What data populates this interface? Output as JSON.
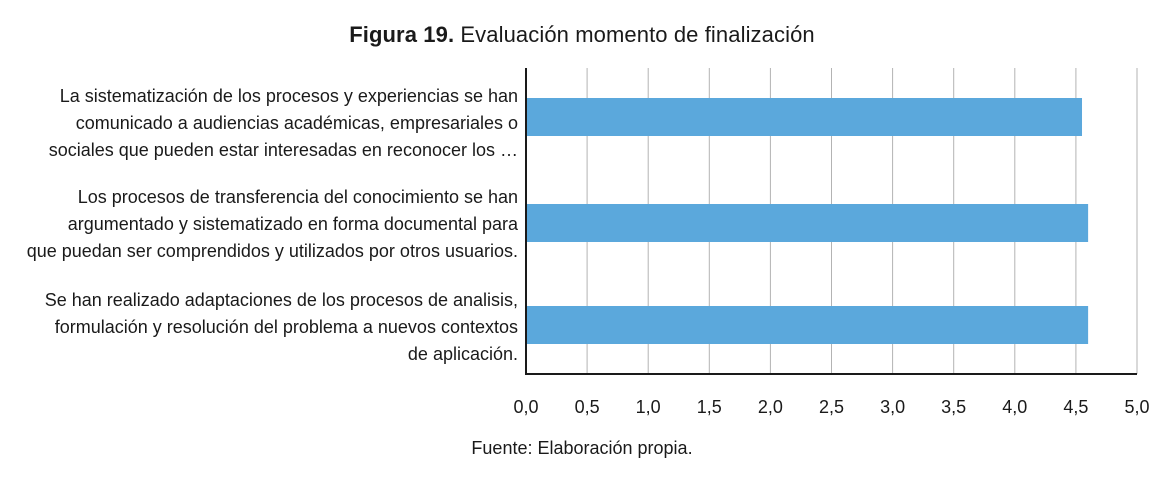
{
  "figure": {
    "number_label": "Figura 19.",
    "title_text": "Evaluación momento de finalización",
    "source": "Fuente: Elaboración propia."
  },
  "chart_data": {
    "type": "bar",
    "orientation": "horizontal",
    "title": "Figura 19. Evaluación momento de finalización",
    "categories": [
      [
        "La sistematización de los procesos y experiencias se han",
        "comunicado a audiencias académicas, empresariales o",
        "sociales que pueden estar interesadas en reconocer los …"
      ],
      [
        "Los procesos de transferencia del conocimiento se han",
        "argumentado y sistematizado en forma documental para",
        "que puedan ser comprendidos y utilizados por otros usuarios."
      ],
      [
        "Se han realizado adaptaciones de los procesos de analisis,",
        "formulación y resolución del problema a nuevos contextos",
        "de aplicación."
      ]
    ],
    "values": [
      4.55,
      4.6,
      4.6
    ],
    "xlim": [
      0,
      5
    ],
    "xticks": [
      "0,0",
      "0,5",
      "1,0",
      "1,5",
      "2,0",
      "2,5",
      "3,0",
      "3,5",
      "4,0",
      "4,5",
      "5,0"
    ],
    "xlabel": "",
    "ylabel": "",
    "grid": true,
    "bar_color": "#5ba8dc",
    "grid_color": "#b3b3b3",
    "axis_color": "#1a1a1a"
  }
}
